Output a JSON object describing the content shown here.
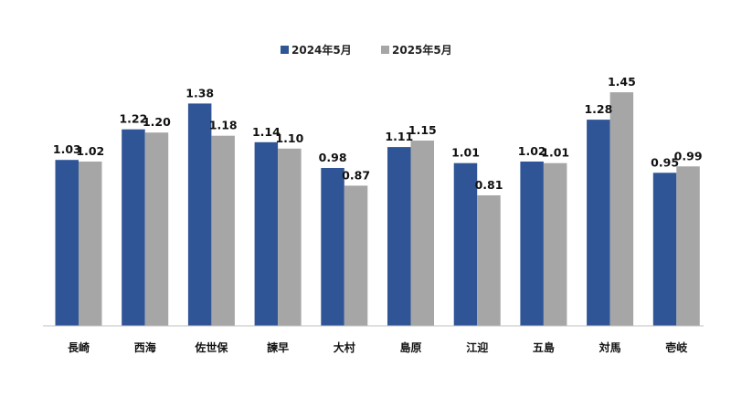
{
  "chart_data": {
    "type": "bar",
    "categories": [
      "長崎",
      "西海",
      "佐世保",
      "諫早",
      "大村",
      "島原",
      "江迎",
      "五島",
      "対馬",
      "壱岐"
    ],
    "series": [
      {
        "name": "2024年5月",
        "color": "#2f5597",
        "values": [
          1.03,
          1.22,
          1.38,
          1.14,
          0.98,
          1.11,
          1.01,
          1.02,
          1.28,
          0.95
        ]
      },
      {
        "name": "2025年5月",
        "color": "#a6a6a6",
        "values": [
          1.02,
          1.2,
          1.18,
          1.1,
          0.87,
          1.15,
          0.81,
          1.01,
          1.45,
          0.99
        ]
      }
    ],
    "data_labels": true,
    "value_format": "0.00",
    "ylim": [
      0,
      1.6
    ],
    "grid": false,
    "legend_position": "top-center"
  }
}
